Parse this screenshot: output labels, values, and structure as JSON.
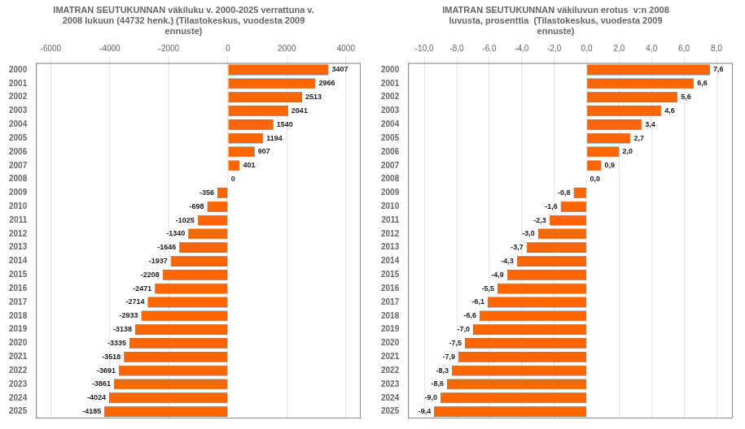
{
  "chart_data": [
    {
      "type": "bar",
      "orientation": "horizontal",
      "title": "IMATRAN SEUTUKUNNAN väkiluku v. 2000-2025 verrattuna v.\n2008 lukuun (44732 henk.) (Tilastokeskus, vuodesta 2009\nennuste)",
      "categories": [
        2000,
        2001,
        2002,
        2003,
        2004,
        2005,
        2006,
        2007,
        2008,
        2009,
        2010,
        2011,
        2012,
        2013,
        2014,
        2015,
        2016,
        2017,
        2018,
        2019,
        2020,
        2021,
        2022,
        2023,
        2024,
        2025
      ],
      "values": [
        3407,
        2966,
        2513,
        2041,
        1540,
        1194,
        907,
        401,
        0,
        -356,
        -698,
        -1025,
        -1340,
        -1646,
        -1937,
        -2208,
        -2471,
        -2714,
        -2933,
        -3138,
        -3335,
        -3518,
        -3691,
        -3861,
        -4024,
        -4185
      ],
      "color": "#FF6600",
      "xlim": [
        -6500,
        4500
      ],
      "xticks": [
        -6000,
        -4000,
        -2000,
        0,
        2000,
        4000
      ],
      "grid": true,
      "data_labels": true
    },
    {
      "type": "bar",
      "orientation": "horizontal",
      "title": "IMATRAN SEUTUKUNNAN väkiluvun erotus  v:n 2008\nluvusta, prosenttia  (Tilastokeskus, vuodesta 2009\nennuste)",
      "categories": [
        2000,
        2001,
        2002,
        2003,
        2004,
        2005,
        2006,
        2007,
        2008,
        2009,
        2010,
        2011,
        2012,
        2013,
        2014,
        2015,
        2016,
        2017,
        2018,
        2019,
        2020,
        2021,
        2022,
        2023,
        2024,
        2025
      ],
      "values": [
        7.6,
        6.6,
        5.6,
        4.6,
        3.4,
        2.7,
        2.0,
        0.9,
        0.0,
        -0.8,
        -1.6,
        -2.3,
        -3.0,
        -3.7,
        -4.3,
        -4.9,
        -5.5,
        -6.1,
        -6.6,
        -7.0,
        -7.5,
        -7.9,
        -8.3,
        -8.6,
        -9.0,
        -9.4
      ],
      "value_labels": [
        "7,6",
        "6,6",
        "5,6",
        "4,6",
        "3,4",
        "2,7",
        "2,0",
        "0,9",
        "0,0",
        "-0,8",
        "-1,6",
        "-2,3",
        "-3,0",
        "-3,7",
        "-4,3",
        "-4,9",
        "-5,5",
        "-6,1",
        "-6,6",
        "-7,0",
        "-7,5",
        "-7,9",
        "-8,3",
        "-8,6",
        "-9,0",
        "-9,4"
      ],
      "color": "#FF6600",
      "xlim": [
        -11.0,
        9.0
      ],
      "xticks": [
        {
          "value": -10.0,
          "label": "-10,0"
        },
        {
          "value": -8.0,
          "label": "-8,0"
        },
        {
          "value": -6.0,
          "label": "-6,0"
        },
        {
          "value": -4.0,
          "label": "-4,0"
        },
        {
          "value": -2.0,
          "label": "-2,0"
        },
        {
          "value": 0.0,
          "label": "0,0"
        },
        {
          "value": 2.0,
          "label": "2,0"
        },
        {
          "value": 4.0,
          "label": "4,0"
        },
        {
          "value": 6.0,
          "label": "6,0"
        },
        {
          "value": 8.0,
          "label": "8,0"
        }
      ],
      "grid": true,
      "data_labels": true
    }
  ]
}
